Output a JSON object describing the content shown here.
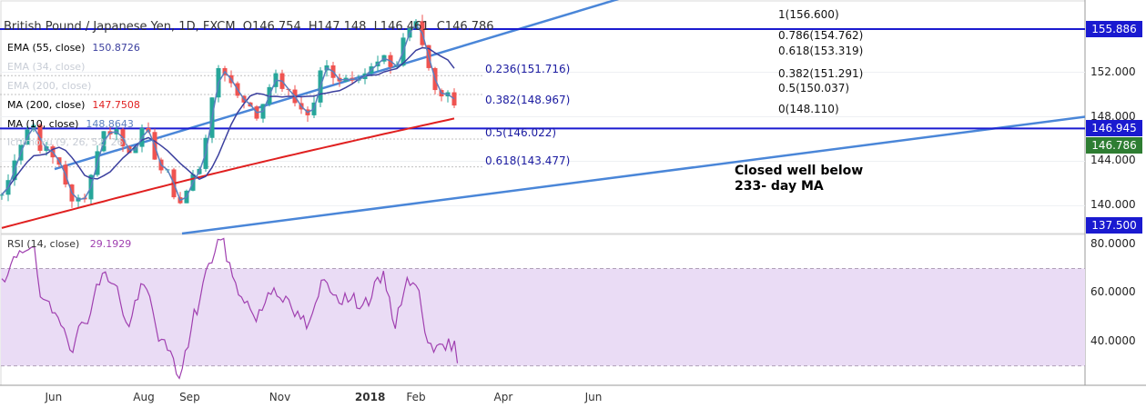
{
  "header": {
    "symbol": "British Pound / Japanese Yen, 1D, FXCM",
    "open": "O146.754",
    "high": "H147.148",
    "low": "L146.461",
    "close": "C146.786"
  },
  "indicators": [
    {
      "label": "EMA (55, close)",
      "value": "150.8726",
      "color": "#3b3f9e",
      "faded": false
    },
    {
      "label": "EMA (34, close)",
      "value": "",
      "color": "#c8cdd6",
      "faded": true
    },
    {
      "label": "EMA (200, close)",
      "value": "",
      "color": "#c8cdd6",
      "faded": true
    },
    {
      "label": "MA (200, close)",
      "value": "147.7508",
      "color": "#e02020",
      "faded": false
    },
    {
      "label": "MA (10, close)",
      "value": "148.8643",
      "color": "#5b7fbf",
      "faded": false
    },
    {
      "label": "Ichimoku (9, 26, 52, 26)",
      "value": "",
      "color": "#c8cdd6",
      "faded": true
    }
  ],
  "rsi": {
    "label": "RSI (14, close)",
    "value": "29.1929",
    "color": "#a040b0"
  },
  "price_axis": [
    "152.000",
    "148.000",
    "144.000",
    "140.000"
  ],
  "rsi_axis": [
    "80.0000",
    "60.0000",
    "40.0000"
  ],
  "badges": [
    {
      "text": "155.886",
      "color": "#1a1ad0"
    },
    {
      "text": "146.945",
      "color": "#1a1ad0"
    },
    {
      "text": "146.786",
      "color": "#2e7d32"
    },
    {
      "text": "137.500",
      "color": "#1a1ad0"
    }
  ],
  "time_axis": [
    {
      "label": "Jun",
      "bold": false
    },
    {
      "label": "Aug",
      "bold": false
    },
    {
      "label": "Sep",
      "bold": false
    },
    {
      "label": "Nov",
      "bold": false
    },
    {
      "label": "2018",
      "bold": true
    },
    {
      "label": "Feb",
      "bold": false
    },
    {
      "label": "Apr",
      "bold": false
    },
    {
      "label": "Jun",
      "bold": false
    }
  ],
  "fib_upper": [
    {
      "text": "1(156.600)"
    },
    {
      "text": "0.786(154.762)"
    },
    {
      "text": "0.618(153.319)"
    },
    {
      "text": "0.382(151.291)"
    },
    {
      "text": "0.5(150.037)"
    },
    {
      "text": "0(148.110)"
    }
  ],
  "fib_lower": [
    {
      "text": "0.236(151.716)"
    },
    {
      "text": "0.382(148.967)"
    },
    {
      "text": "0.5(146.022)"
    },
    {
      "text": "0.618(143.477)"
    }
  ],
  "annotation": [
    "Closed well below",
    "233- day MA"
  ],
  "colors": {
    "up": "#26a69a",
    "down": "#ef5350",
    "channel": "#4a86d8",
    "hline": "#1a1ad0",
    "ma200": "#e02020",
    "ema55": "#3b3f9e",
    "ma10": "#5b7fbf",
    "rsi_band": "#eadcf5",
    "rsi_line": "#a040b0",
    "fib_text": "#1a1aa0"
  },
  "chart_data": {
    "type": "candlestick",
    "title": "British Pound / Japanese Yen, 1D, FXCM",
    "ylim": [
      137.5,
      158.5
    ],
    "y_ticks": [
      140,
      144,
      148,
      152,
      155.886
    ],
    "levels": {
      "resistance": 155.886,
      "support": 146.945,
      "last": 146.786
    },
    "channel": {
      "upper": [
        [
          143.3,
          162.5
        ]
      ],
      "lower": [
        [
          137.5,
          148.0
        ]
      ]
    },
    "anchors": [
      {
        "date": "2017-04-27",
        "price": 141.0
      },
      {
        "date": "2017-05-10",
        "price": 145.8
      },
      {
        "date": "2017-05-17",
        "price": 147.5
      },
      {
        "date": "2017-05-25",
        "price": 145.0
      },
      {
        "date": "2017-06-05",
        "price": 143.8
      },
      {
        "date": "2017-06-14",
        "price": 140.0
      },
      {
        "date": "2017-06-21",
        "price": 141.0
      },
      {
        "date": "2017-07-05",
        "price": 146.5
      },
      {
        "date": "2017-07-12",
        "price": 147.0
      },
      {
        "date": "2017-07-20",
        "price": 145.0
      },
      {
        "date": "2017-08-01",
        "price": 146.5
      },
      {
        "date": "2017-08-15",
        "price": 143.0
      },
      {
        "date": "2017-08-25",
        "price": 140.3
      },
      {
        "date": "2017-09-06",
        "price": 143.0
      },
      {
        "date": "2017-09-12",
        "price": 146.5
      },
      {
        "date": "2017-09-21",
        "price": 152.5
      },
      {
        "date": "2017-10-05",
        "price": 150.0
      },
      {
        "date": "2017-10-16",
        "price": 148.0
      },
      {
        "date": "2017-10-27",
        "price": 151.5
      },
      {
        "date": "2017-11-15",
        "price": 149.0
      },
      {
        "date": "2017-11-20",
        "price": 148.0
      },
      {
        "date": "2017-12-01",
        "price": 152.5
      },
      {
        "date": "2017-12-12",
        "price": 151.5
      },
      {
        "date": "2017-12-28",
        "price": 152.0
      },
      {
        "date": "2018-01-10",
        "price": 153.0
      },
      {
        "date": "2018-01-18",
        "price": 152.5
      },
      {
        "date": "2018-01-26",
        "price": 156.0
      },
      {
        "date": "2018-02-02",
        "price": 156.2
      },
      {
        "date": "2018-02-09",
        "price": 152.5
      },
      {
        "date": "2018-02-16",
        "price": 150.2
      },
      {
        "date": "2018-02-26",
        "price": 149.8
      },
      {
        "date": "2018-03-02",
        "price": 146.8
      }
    ],
    "rsi": {
      "ylim": [
        22,
        84
      ],
      "bands": [
        30,
        70
      ],
      "anchors": [
        {
          "date": "2017-04-27",
          "value": 63
        },
        {
          "date": "2017-05-10",
          "value": 78
        },
        {
          "date": "2017-05-17",
          "value": 80
        },
        {
          "date": "2017-05-25",
          "value": 55
        },
        {
          "date": "2017-06-05",
          "value": 50
        },
        {
          "date": "2017-06-14",
          "value": 38
        },
        {
          "date": "2017-06-21",
          "value": 48
        },
        {
          "date": "2017-07-05",
          "value": 67
        },
        {
          "date": "2017-07-12",
          "value": 65
        },
        {
          "date": "2017-07-20",
          "value": 47
        },
        {
          "date": "2017-08-01",
          "value": 62
        },
        {
          "date": "2017-08-15",
          "value": 38
        },
        {
          "date": "2017-08-25",
          "value": 27
        },
        {
          "date": "2017-09-06",
          "value": 53
        },
        {
          "date": "2017-09-12",
          "value": 68
        },
        {
          "date": "2017-09-21",
          "value": 82
        },
        {
          "date": "2017-10-05",
          "value": 60
        },
        {
          "date": "2017-10-16",
          "value": 50
        },
        {
          "date": "2017-10-27",
          "value": 62
        },
        {
          "date": "2017-11-15",
          "value": 50
        },
        {
          "date": "2017-11-20",
          "value": 46
        },
        {
          "date": "2017-12-01",
          "value": 65
        },
        {
          "date": "2017-12-12",
          "value": 58
        },
        {
          "date": "2017-12-28",
          "value": 56
        },
        {
          "date": "2018-01-10",
          "value": 66
        },
        {
          "date": "2018-01-18",
          "value": 48
        },
        {
          "date": "2018-01-26",
          "value": 66
        },
        {
          "date": "2018-02-02",
          "value": 61
        },
        {
          "date": "2018-02-09",
          "value": 42
        },
        {
          "date": "2018-02-16",
          "value": 36
        },
        {
          "date": "2018-02-26",
          "value": 39
        },
        {
          "date": "2018-03-02",
          "value": 29
        }
      ]
    }
  }
}
